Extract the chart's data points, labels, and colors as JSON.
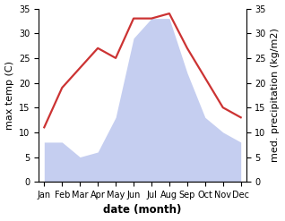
{
  "months": [
    "Jan",
    "Feb",
    "Mar",
    "Apr",
    "May",
    "Jun",
    "Jul",
    "Aug",
    "Sep",
    "Oct",
    "Nov",
    "Dec"
  ],
  "temperature": [
    11,
    19,
    23,
    27,
    25,
    33,
    33,
    34,
    27,
    21,
    15,
    13
  ],
  "precipitation": [
    8,
    8,
    5,
    6,
    13,
    29,
    33,
    33,
    22,
    13,
    10,
    8
  ],
  "temp_color": "#cc3333",
  "precip_color": "#c5cef0",
  "ylim": [
    0,
    35
  ],
  "ylabel_left": "max temp (C)",
  "ylabel_right": "med. precipitation (kg/m2)",
  "xlabel": "date (month)",
  "bg_color": "#ffffff",
  "tick_fontsize": 7.0,
  "label_fontsize": 8.0,
  "xlabel_fontsize": 8.5,
  "line_width": 1.6,
  "yticks": [
    0,
    5,
    10,
    15,
    20,
    25,
    30,
    35
  ]
}
